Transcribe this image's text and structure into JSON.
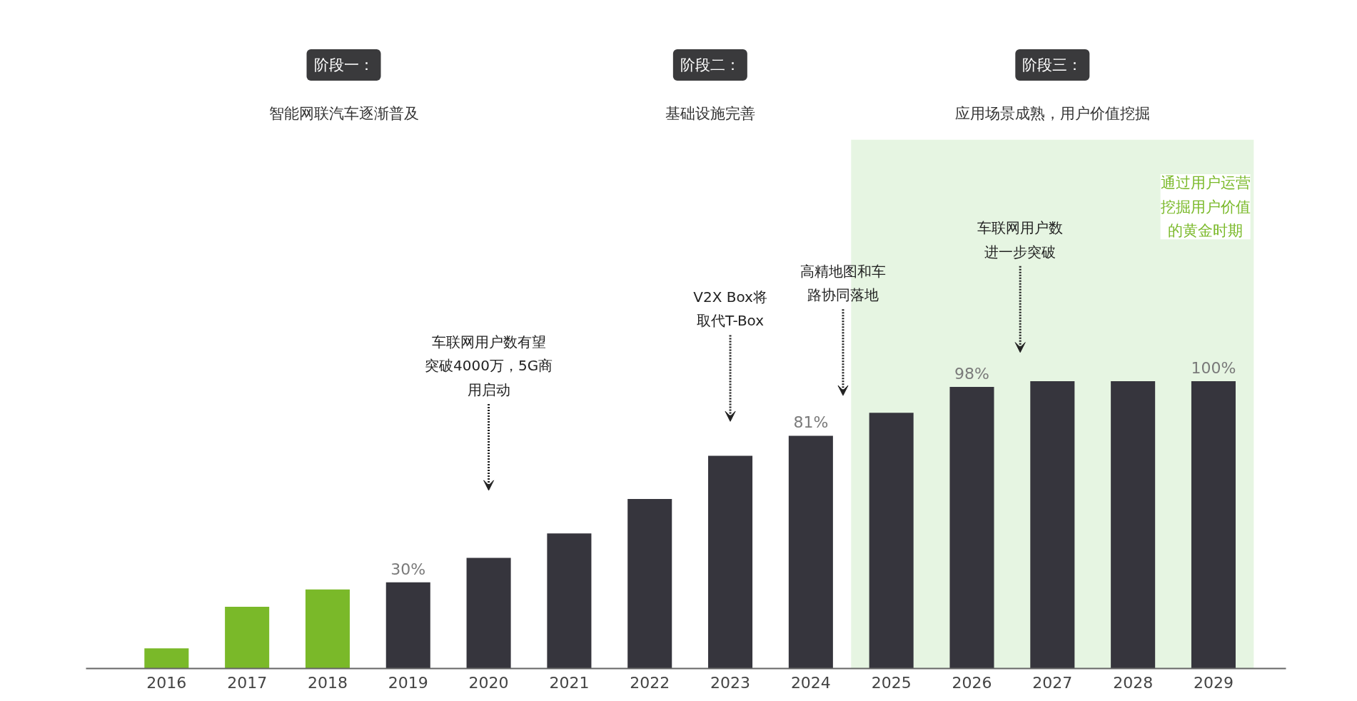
{
  "chart_data": {
    "type": "bar",
    "categories": [
      "2016",
      "2017",
      "2018",
      "2019",
      "2020",
      "2021",
      "2022",
      "2023",
      "2024",
      "2025",
      "2026",
      "2027",
      "2028",
      "2029"
    ],
    "values": [
      7,
      21.5,
      27.5,
      30,
      38.5,
      47,
      59,
      74,
      81,
      89,
      98,
      100,
      100,
      100
    ],
    "colors": [
      "#7ab929",
      "#7ab929",
      "#7ab929",
      "#36353d",
      "#36353d",
      "#36353d",
      "#36353d",
      "#36353d",
      "#36353d",
      "#36353d",
      "#36353d",
      "#36353d",
      "#36353d",
      "#36353d"
    ],
    "value_labels": [
      null,
      null,
      null,
      "30%",
      null,
      null,
      null,
      null,
      "81%",
      null,
      "98%",
      null,
      null,
      "100%"
    ],
    "tick_labels": "x",
    "grid": false,
    "bands": [
      {
        "axis": "x",
        "from": "2025",
        "to": "2029",
        "label": "通过用户运营挖掘用户价值的黄金时期",
        "color": "#e6f5e2"
      }
    ],
    "annotations": [
      "阶段一：",
      "智能网联汽车逐渐普及",
      "阶段二：",
      "基础设施完善",
      "阶段三：",
      "应用场景成熟，用户价值挖掘",
      "车联网用户数有望突破4000万，5G商用启动",
      "V2X Box将取代T-Box",
      "高精地图和车路协同落地",
      "车联网用户数进一步突破"
    ]
  }
}
